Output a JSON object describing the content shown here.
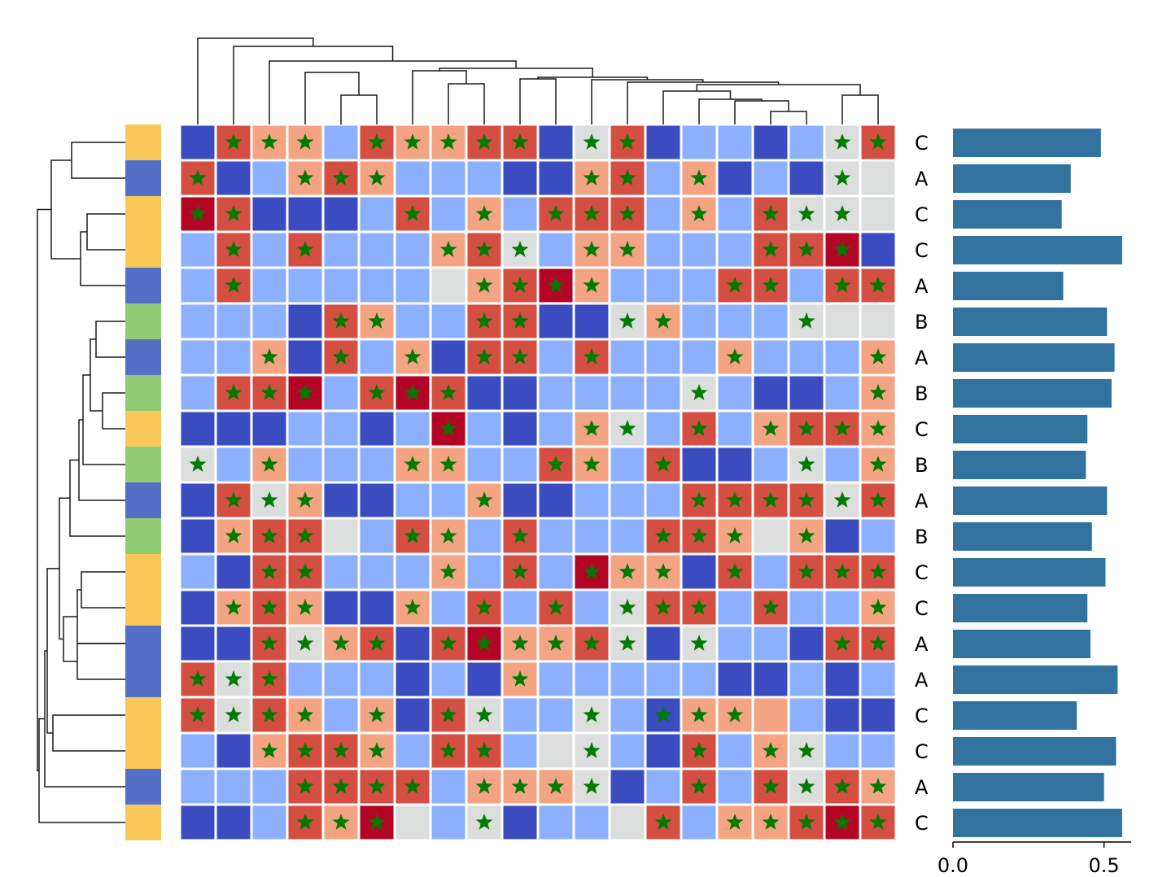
{
  "chart_data": {
    "type": "heatmap",
    "title": "",
    "n_rows": 20,
    "n_cols": 20,
    "values": [
      [
        -2,
        2,
        1,
        1,
        -1,
        2,
        1,
        1,
        2,
        2,
        -2,
        0,
        2,
        -2,
        -1,
        -1,
        -2,
        -1,
        0,
        2
      ],
      [
        2,
        -2,
        -1,
        1,
        2,
        1,
        -1,
        -1,
        -1,
        -2,
        -2,
        1,
        2,
        -1,
        1,
        -2,
        -1,
        -2,
        0,
        0
      ],
      [
        3,
        2,
        -2,
        -2,
        -2,
        -1,
        2,
        -1,
        1,
        -1,
        2,
        2,
        2,
        -1,
        1,
        -1,
        2,
        0,
        0,
        0
      ],
      [
        -1,
        2,
        -1,
        2,
        -1,
        -1,
        -1,
        1,
        2,
        0,
        -1,
        1,
        1,
        -1,
        -1,
        -1,
        2,
        2,
        3,
        -2
      ],
      [
        -1,
        2,
        -1,
        -1,
        -1,
        -1,
        -1,
        0,
        1,
        2,
        3,
        1,
        -1,
        -1,
        -1,
        2,
        2,
        -1,
        2,
        2
      ],
      [
        -1,
        -1,
        -1,
        -2,
        2,
        1,
        -1,
        -1,
        2,
        2,
        -2,
        -2,
        0,
        1,
        -1,
        -1,
        -1,
        0,
        0,
        0
      ],
      [
        -1,
        -1,
        1,
        -2,
        2,
        -1,
        1,
        -2,
        2,
        2,
        -1,
        2,
        -1,
        -1,
        -1,
        1,
        -1,
        -1,
        -1,
        1
      ],
      [
        -1,
        2,
        2,
        3,
        -1,
        2,
        3,
        2,
        -2,
        -2,
        -1,
        -1,
        -1,
        -1,
        0,
        -1,
        -2,
        -2,
        -1,
        1
      ],
      [
        -2,
        -2,
        -2,
        -1,
        -1,
        -2,
        -1,
        3,
        -1,
        -2,
        -1,
        1,
        0,
        -1,
        2,
        -1,
        1,
        2,
        2,
        1
      ],
      [
        0,
        -1,
        1,
        -1,
        -1,
        -1,
        1,
        1,
        -1,
        -1,
        2,
        1,
        -1,
        2,
        -2,
        -2,
        -1,
        0,
        -1,
        1
      ],
      [
        -2,
        2,
        0,
        1,
        -2,
        -2,
        -1,
        -1,
        1,
        -2,
        -2,
        -1,
        -1,
        -1,
        2,
        2,
        2,
        2,
        0,
        2
      ],
      [
        -2,
        1,
        2,
        2,
        0,
        -1,
        2,
        1,
        -1,
        2,
        -1,
        -1,
        -1,
        2,
        2,
        1,
        0,
        1,
        -2,
        -1
      ],
      [
        -1,
        -2,
        2,
        2,
        -1,
        -1,
        -1,
        1,
        -1,
        2,
        -1,
        3,
        1,
        1,
        -2,
        2,
        -1,
        2,
        2,
        2
      ],
      [
        -2,
        1,
        2,
        1,
        -2,
        -2,
        1,
        -1,
        2,
        -1,
        2,
        -1,
        0,
        2,
        2,
        -1,
        2,
        -1,
        -1,
        1
      ],
      [
        -2,
        -2,
        2,
        0,
        1,
        2,
        -2,
        2,
        3,
        1,
        1,
        2,
        0,
        -2,
        0,
        -1,
        -1,
        -2,
        2,
        2
      ],
      [
        2,
        0,
        2,
        -1,
        -1,
        -1,
        -2,
        -1,
        -2,
        1,
        -1,
        -1,
        -1,
        -1,
        -1,
        -2,
        -2,
        -1,
        -2,
        -1
      ],
      [
        2,
        0,
        2,
        1,
        -1,
        1,
        -2,
        2,
        0,
        -1,
        -1,
        0,
        -1,
        -2,
        1,
        1,
        1,
        -1,
        -2,
        -2
      ],
      [
        -1,
        -2,
        1,
        2,
        2,
        1,
        -1,
        2,
        2,
        -1,
        0,
        0,
        -1,
        -2,
        2,
        -1,
        1,
        0,
        -1,
        -1
      ],
      [
        -1,
        -1,
        -1,
        2,
        2,
        2,
        2,
        -1,
        1,
        1,
        1,
        0,
        -2,
        -1,
        2,
        -1,
        2,
        0,
        2,
        1
      ],
      [
        -2,
        -2,
        -1,
        2,
        1,
        3,
        0,
        -1,
        0,
        -2,
        -1,
        -1,
        0,
        2,
        -1,
        1,
        1,
        2,
        3,
        2
      ]
    ],
    "stars": [
      [
        0,
        1,
        1,
        1,
        0,
        1,
        1,
        1,
        1,
        1,
        0,
        1,
        1,
        0,
        0,
        0,
        0,
        0,
        1,
        1
      ],
      [
        1,
        0,
        0,
        1,
        1,
        1,
        0,
        0,
        0,
        0,
        0,
        1,
        1,
        0,
        1,
        0,
        0,
        0,
        1,
        0
      ],
      [
        1,
        1,
        0,
        0,
        0,
        0,
        1,
        0,
        1,
        0,
        1,
        1,
        1,
        0,
        1,
        0,
        1,
        1,
        1,
        0
      ],
      [
        0,
        1,
        0,
        1,
        0,
        0,
        0,
        1,
        1,
        1,
        0,
        1,
        1,
        0,
        0,
        0,
        1,
        1,
        1,
        0
      ],
      [
        0,
        1,
        0,
        0,
        0,
        0,
        0,
        0,
        1,
        1,
        1,
        1,
        0,
        0,
        0,
        1,
        1,
        0,
        1,
        1
      ],
      [
        0,
        0,
        0,
        0,
        1,
        1,
        0,
        0,
        1,
        1,
        0,
        0,
        1,
        1,
        0,
        0,
        0,
        1,
        0,
        0
      ],
      [
        0,
        0,
        1,
        0,
        1,
        0,
        1,
        0,
        1,
        1,
        0,
        1,
        0,
        0,
        0,
        1,
        0,
        0,
        0,
        1
      ],
      [
        0,
        1,
        1,
        1,
        0,
        1,
        1,
        1,
        0,
        0,
        0,
        0,
        0,
        0,
        1,
        0,
        0,
        0,
        0,
        1
      ],
      [
        0,
        0,
        0,
        0,
        0,
        0,
        0,
        1,
        0,
        0,
        0,
        1,
        1,
        0,
        1,
        0,
        1,
        1,
        1,
        1
      ],
      [
        1,
        0,
        1,
        0,
        0,
        0,
        1,
        1,
        0,
        0,
        1,
        1,
        0,
        1,
        0,
        0,
        0,
        1,
        0,
        1
      ],
      [
        0,
        1,
        1,
        1,
        0,
        0,
        0,
        0,
        1,
        0,
        0,
        0,
        0,
        0,
        1,
        1,
        1,
        1,
        1,
        1
      ],
      [
        0,
        1,
        1,
        1,
        0,
        0,
        1,
        1,
        0,
        1,
        0,
        0,
        0,
        1,
        1,
        1,
        0,
        1,
        0,
        0
      ],
      [
        0,
        0,
        1,
        1,
        0,
        0,
        0,
        1,
        0,
        1,
        0,
        1,
        1,
        1,
        0,
        1,
        0,
        1,
        1,
        1
      ],
      [
        0,
        1,
        1,
        1,
        0,
        0,
        1,
        0,
        1,
        0,
        1,
        0,
        1,
        1,
        1,
        0,
        1,
        0,
        0,
        1
      ],
      [
        0,
        0,
        1,
        1,
        1,
        1,
        0,
        1,
        1,
        1,
        1,
        1,
        1,
        0,
        1,
        0,
        0,
        0,
        1,
        1
      ],
      [
        1,
        1,
        1,
        0,
        0,
        0,
        0,
        0,
        0,
        1,
        0,
        0,
        0,
        0,
        0,
        0,
        0,
        0,
        0,
        0
      ],
      [
        1,
        1,
        1,
        1,
        0,
        1,
        0,
        1,
        1,
        0,
        0,
        1,
        0,
        1,
        1,
        1,
        0,
        0,
        0,
        0
      ],
      [
        0,
        0,
        1,
        1,
        1,
        1,
        0,
        1,
        1,
        0,
        0,
        1,
        0,
        0,
        1,
        0,
        1,
        1,
        0,
        0
      ],
      [
        0,
        0,
        0,
        1,
        1,
        1,
        1,
        0,
        1,
        1,
        1,
        1,
        0,
        0,
        1,
        0,
        1,
        1,
        1,
        1
      ],
      [
        0,
        0,
        0,
        1,
        1,
        1,
        0,
        0,
        1,
        0,
        0,
        0,
        0,
        1,
        0,
        1,
        1,
        1,
        1,
        1
      ]
    ],
    "row_labels": [
      "C",
      "A",
      "C",
      "C",
      "A",
      "B",
      "A",
      "B",
      "C",
      "B",
      "A",
      "B",
      "C",
      "C",
      "A",
      "A",
      "C",
      "C",
      "A",
      "C"
    ],
    "row_groups": [
      "C",
      "A",
      "C",
      "C",
      "A",
      "B",
      "A",
      "B",
      "C",
      "B",
      "A",
      "B",
      "C",
      "C",
      "A",
      "A",
      "C",
      "C",
      "A",
      "C"
    ],
    "group_colors": {
      "A": "#5470c6",
      "B": "#91cc75",
      "C": "#fac858"
    },
    "bar_values": [
      0.49,
      0.39,
      0.36,
      0.56,
      0.365,
      0.51,
      0.535,
      0.525,
      0.445,
      0.44,
      0.51,
      0.46,
      0.505,
      0.445,
      0.455,
      0.545,
      0.41,
      0.54,
      0.5,
      0.56
    ],
    "bar_color": "#31729f",
    "bar_xlim": [
      0,
      0.59
    ],
    "bar_xticks": [
      "0.0",
      "0.5"
    ],
    "bar_xtick_values": [
      0,
      0.5
    ],
    "star_color": "#007a00",
    "colormap": {
      "-2": "#3b4cc0",
      "-1": "#8db0fe",
      "0": "#dcdddd",
      "1": "#f4a482",
      "2": "#d44e41",
      "3": "#b40426"
    },
    "col_dendrogram": [
      [
        0,
        1,
        0,
        1
      ],
      [
        2,
        3,
        0,
        1
      ]
    ],
    "row_dendrogram": []
  }
}
